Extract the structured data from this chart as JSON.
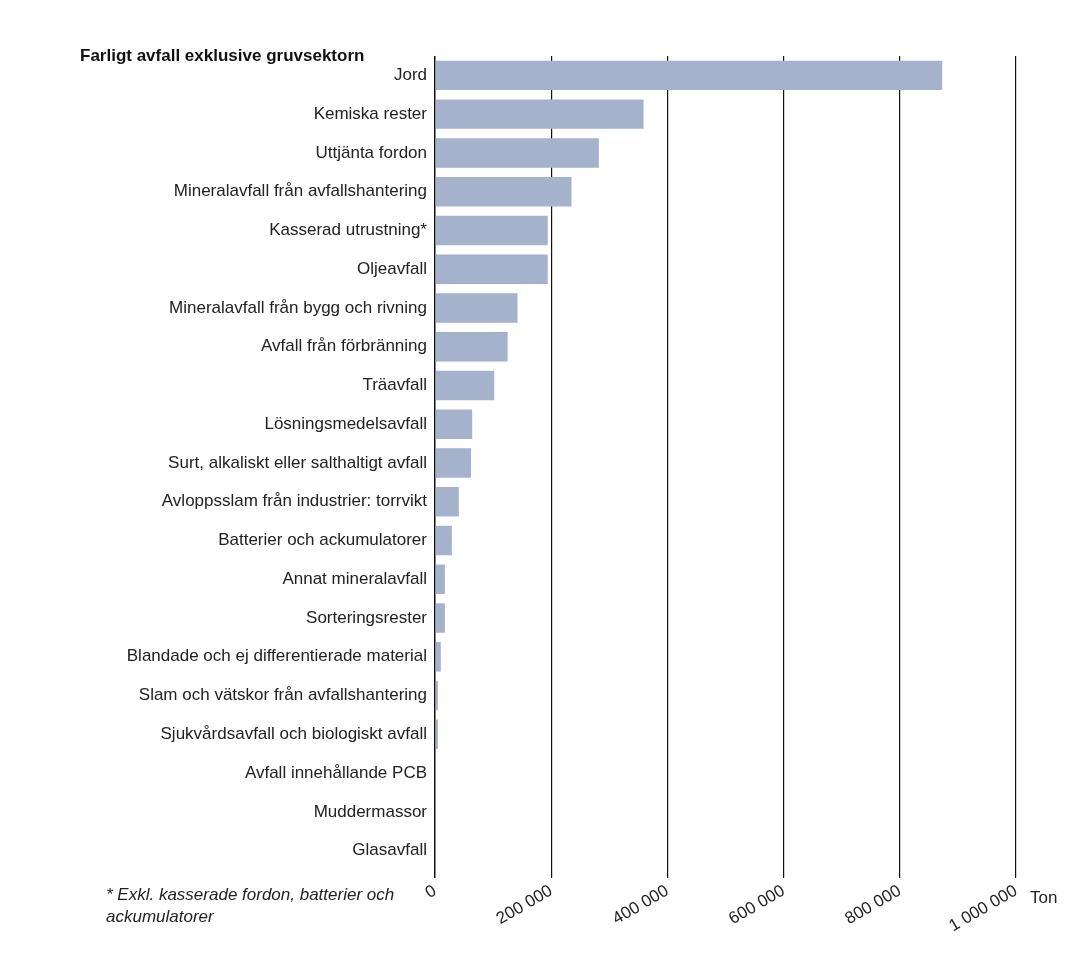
{
  "chart_data": {
    "type": "bar",
    "orientation": "horizontal",
    "title": "Farligt avfall exklusive gruvsektorn",
    "xlabel": "Ton",
    "categories": [
      "Jord",
      "Kemiska rester",
      "Uttjänta fordon",
      "Mineralavfall från avfallshantering",
      "Kasserad utrustning*",
      "Oljeavfall",
      "Mineralavfall från bygg och rivning",
      "Avfall från förbränning",
      "Träavfall",
      "Lösningsmedelsavfall",
      "Surt, alkaliskt eller salthaltigt avfall",
      "Avloppsslam från industrier: torrvikt",
      "Batterier och ackumulatorer",
      "Annat mineralavfall",
      "Sorteringsrester",
      "Blandade och ej differentierade material",
      "Slam och vätskor från avfallshantering",
      "Sjukvårdsavfall och biologiskt avfall",
      "Avfall innehållande PCB",
      "Muddermassor",
      "Glasavfall"
    ],
    "values": [
      873000,
      359000,
      282000,
      235000,
      194000,
      194000,
      142000,
      125000,
      102000,
      64000,
      62000,
      41000,
      29000,
      17000,
      17000,
      10000,
      5000,
      5000,
      null,
      null,
      null
    ],
    "color": "#a5b2cc",
    "xlim": [
      0,
      1000000
    ],
    "xticks": [
      0,
      {
        "value": 200000,
        "label": "200 000"
      },
      {
        "value": 400000,
        "label": "400 000"
      },
      {
        "value": 600000,
        "label": "600 000"
      },
      {
        "value": 800000,
        "label": "800 000"
      },
      {
        "value": 1000000,
        "label": "1 000 000"
      }
    ],
    "grid": "x",
    "legend": false,
    "annotations": [
      "* Exkl. kasserade fordon, batterier och ackumulatorer"
    ]
  }
}
